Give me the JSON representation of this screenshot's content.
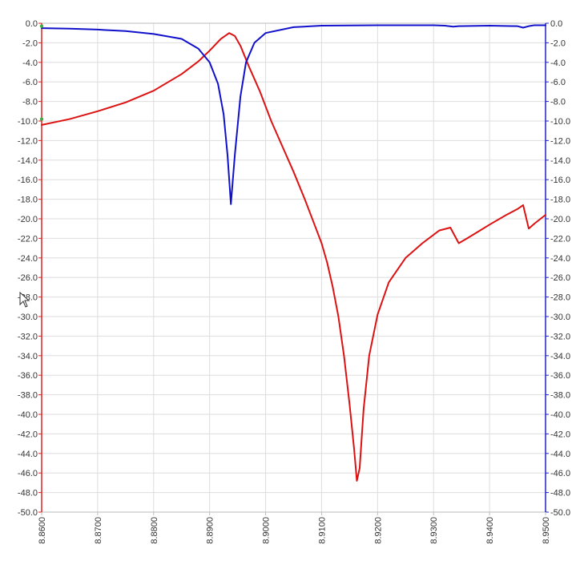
{
  "chart_data": {
    "type": "line",
    "title": "",
    "xlabel": "",
    "ylabel": "",
    "y2label": "",
    "grid": true,
    "xlim": [
      8.86,
      8.95
    ],
    "ylim": [
      -50,
      0
    ],
    "y2lim": [
      -50,
      0
    ],
    "x_ticks": [
      "8.8600",
      "8.8700",
      "8.8800",
      "8.8900",
      "8.9000",
      "8.9100",
      "8.9200",
      "8.9300",
      "8.9400",
      "8.9500"
    ],
    "y_ticks": [
      "0.0",
      "-2.0",
      "-4.0",
      "-6.0",
      "-8.0",
      "-10.0",
      "-12.0",
      "-14.0",
      "-16.0",
      "-18.0",
      "-20.0",
      "-22.0",
      "-24.0",
      "-26.0",
      "-28.0",
      "-30.0",
      "-32.0",
      "-34.0",
      "-36.0",
      "-38.0",
      "-40.0",
      "-42.0",
      "-44.0",
      "-46.0",
      "-48.0",
      "-50.0"
    ],
    "y2_ticks": [
      "0.0",
      "-2.0",
      "-4.0",
      "-6.0",
      "-8.0",
      "-10.0",
      "-12.0",
      "-14.0",
      "-16.0",
      "-18.0",
      "-20.0",
      "-22.0",
      "-24.0",
      "-26.0",
      "-28.0",
      "-30.0",
      "-32.0",
      "-34.0",
      "-36.0",
      "-38.0",
      "-40.0",
      "-42.0",
      "-44.0",
      "-46.0",
      "-48.0",
      "-50.0"
    ],
    "colors": {
      "left_axis": "#dd2222",
      "right_axis": "#2222cc",
      "grid": "#dddddd",
      "frame": "#bbbbbb"
    },
    "series": [
      {
        "axis": "left",
        "color": "#dd1111",
        "points": [
          [
            8.86,
            -10.4
          ],
          [
            8.865,
            -9.8
          ],
          [
            8.87,
            -9.0
          ],
          [
            8.875,
            -8.1
          ],
          [
            8.88,
            -6.9
          ],
          [
            8.885,
            -5.2
          ],
          [
            8.888,
            -3.9
          ],
          [
            8.89,
            -2.8
          ],
          [
            8.892,
            -1.6
          ],
          [
            8.8935,
            -1.0
          ],
          [
            8.8945,
            -1.3
          ],
          [
            8.8955,
            -2.3
          ],
          [
            8.897,
            -4.4
          ],
          [
            8.899,
            -7.0
          ],
          [
            8.901,
            -10.0
          ],
          [
            8.903,
            -12.6
          ],
          [
            8.905,
            -15.2
          ],
          [
            8.907,
            -18.0
          ],
          [
            8.909,
            -21.0
          ],
          [
            8.91,
            -22.5
          ],
          [
            8.911,
            -24.5
          ],
          [
            8.912,
            -27.0
          ],
          [
            8.913,
            -30.0
          ],
          [
            8.914,
            -34.0
          ],
          [
            8.915,
            -39.0
          ],
          [
            8.9158,
            -43.5
          ],
          [
            8.9163,
            -46.8
          ],
          [
            8.9168,
            -45.5
          ],
          [
            8.9175,
            -39.5
          ],
          [
            8.9185,
            -34.0
          ],
          [
            8.92,
            -29.8
          ],
          [
            8.922,
            -26.5
          ],
          [
            8.925,
            -24.0
          ],
          [
            8.928,
            -22.5
          ],
          [
            8.931,
            -21.2
          ],
          [
            8.933,
            -20.9
          ],
          [
            8.9345,
            -22.5
          ],
          [
            8.936,
            -22.0
          ],
          [
            8.938,
            -21.3
          ],
          [
            8.94,
            -20.6
          ],
          [
            8.943,
            -19.6
          ],
          [
            8.945,
            -19.0
          ],
          [
            8.946,
            -18.6
          ],
          [
            8.947,
            -21.0
          ],
          [
            8.948,
            -20.5
          ],
          [
            8.95,
            -19.6
          ]
        ]
      },
      {
        "axis": "right",
        "color": "#1111cc",
        "points": [
          [
            8.86,
            -0.5
          ],
          [
            8.865,
            -0.55
          ],
          [
            8.87,
            -0.65
          ],
          [
            8.875,
            -0.8
          ],
          [
            8.88,
            -1.1
          ],
          [
            8.885,
            -1.6
          ],
          [
            8.888,
            -2.6
          ],
          [
            8.89,
            -4.0
          ],
          [
            8.8915,
            -6.2
          ],
          [
            8.8925,
            -9.3
          ],
          [
            8.8932,
            -13.5
          ],
          [
            8.8938,
            -18.5
          ],
          [
            8.8945,
            -13.5
          ],
          [
            8.8955,
            -7.5
          ],
          [
            8.8965,
            -4.0
          ],
          [
            8.898,
            -2.0
          ],
          [
            8.9,
            -1.0
          ],
          [
            8.905,
            -0.4
          ],
          [
            8.91,
            -0.25
          ],
          [
            8.92,
            -0.2
          ],
          [
            8.93,
            -0.2
          ],
          [
            8.932,
            -0.25
          ],
          [
            8.9335,
            -0.35
          ],
          [
            8.9345,
            -0.3
          ],
          [
            8.94,
            -0.25
          ],
          [
            8.945,
            -0.3
          ],
          [
            8.946,
            -0.45
          ],
          [
            8.947,
            -0.3
          ],
          [
            8.948,
            -0.2
          ],
          [
            8.95,
            -0.2
          ]
        ]
      }
    ]
  }
}
